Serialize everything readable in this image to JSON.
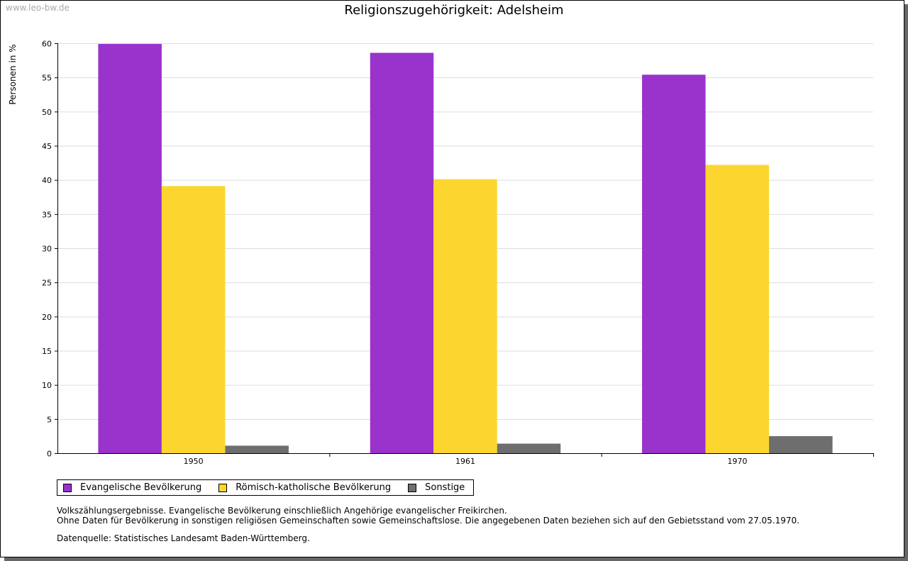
{
  "watermark": "www.leo-bw.de",
  "chart_data": {
    "type": "bar",
    "title": "Religionszugehörigkeit: Adelsheim",
    "xlabel": "",
    "ylabel": "Personen in %",
    "ylim": [
      0,
      60
    ],
    "yticks": [
      "0",
      "5",
      "10",
      "15",
      "20",
      "25",
      "30",
      "35",
      "40",
      "45",
      "50",
      "55",
      "60"
    ],
    "categories": [
      "1950",
      "1961",
      "1970"
    ],
    "grid": true,
    "legend_position": "bottom",
    "series": [
      {
        "name": "Evangelische Bevölkerung",
        "color": "#9933cc",
        "values": [
          59.9,
          58.6,
          55.4
        ]
      },
      {
        "name": "Römisch-katholische Bevölkerung",
        "color": "#fcd62f",
        "values": [
          39.1,
          40.1,
          42.2
        ]
      },
      {
        "name": "Sonstige",
        "color": "#6e6e6e",
        "values": [
          1.1,
          1.4,
          2.5
        ]
      }
    ]
  },
  "notes": {
    "line1": "Volkszählungsergebnisse. Evangelische Bevölkerung einschließlich Angehörige evangelischer Freikirchen.",
    "line2": "Ohne Daten für Bevölkerung in sonstigen religiösen Gemeinschaften sowie Gemeinschaftslose. Die angegebenen Daten beziehen sich auf den Gebietsstand vom 27.05.1970.",
    "source": "Datenquelle: Statistisches Landesamt Baden-Württemberg."
  }
}
